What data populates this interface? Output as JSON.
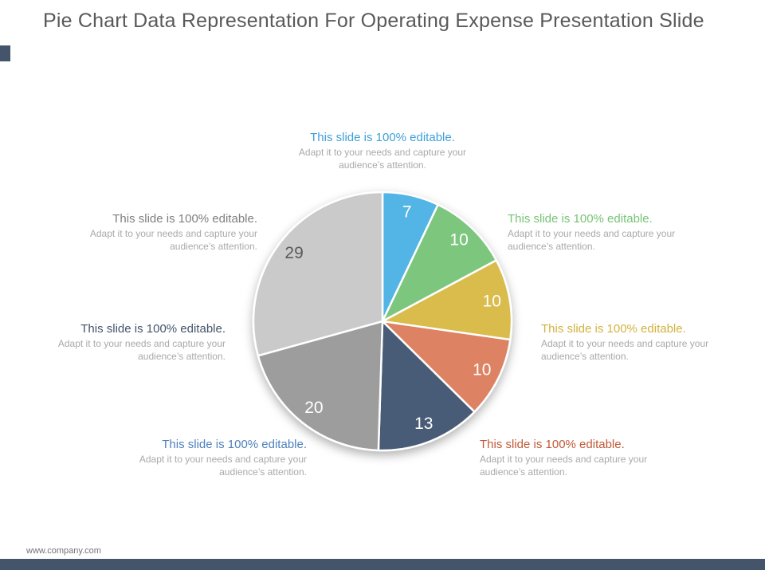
{
  "title": "Pie Chart Data Representation For Operating Expense Presentation Slide",
  "footer": {
    "website": "www.company.com"
  },
  "colors": {
    "accent_bar": "#44546A",
    "title": "#595959"
  },
  "chart_data": {
    "type": "pie",
    "values": [
      7,
      10,
      10,
      10,
      13,
      20,
      29
    ],
    "labels": [
      "7",
      "10",
      "10",
      "10",
      "13",
      "20",
      "29"
    ],
    "colors": [
      "#53B5E5",
      "#7CC67E",
      "#D9BC4B",
      "#DD8263",
      "#4A5C77",
      "#9D9D9D",
      "#CACACA"
    ],
    "label_colors": [
      "#FFFFFF",
      "#FFFFFF",
      "#FFFFFF",
      "#FFFFFF",
      "#FFFFFF",
      "#FFFFFF",
      "#595959"
    ],
    "start_angle_deg": 0,
    "direction": "clockwise",
    "stroke": "#FFFFFF",
    "legend": "none",
    "labels_position": "inside"
  },
  "callouts": [
    {
      "heading": "This slide is 100% editable.",
      "body": "Adapt it to your needs and capture your audience’s attention.",
      "color": "#3FA0DA"
    },
    {
      "heading": "This slide is 100% editable.",
      "body": "Adapt it to your needs and capture your audience’s attention.",
      "color": "#77C475"
    },
    {
      "heading": "This slide is 100% editable.",
      "body": "Adapt it to your needs and capture your audience’s attention.",
      "color": "#D2B23F"
    },
    {
      "heading": "This slide is 100% editable.",
      "body": "Adapt it to your needs and capture your audience’s attention.",
      "color": "#C05A38"
    },
    {
      "heading": "This slide is 100% editable.",
      "body": "Adapt it to your needs and capture your audience’s attention.",
      "color": "#4F81BD"
    },
    {
      "heading": "This slide is 100% editable.",
      "body": "Adapt it to your needs and capture your audience’s attention.",
      "color": "#44546A"
    },
    {
      "heading": "This slide is 100% editable.",
      "body": "Adapt it to your needs and capture your audience’s attention.",
      "color": "#7F7F7F"
    }
  ]
}
